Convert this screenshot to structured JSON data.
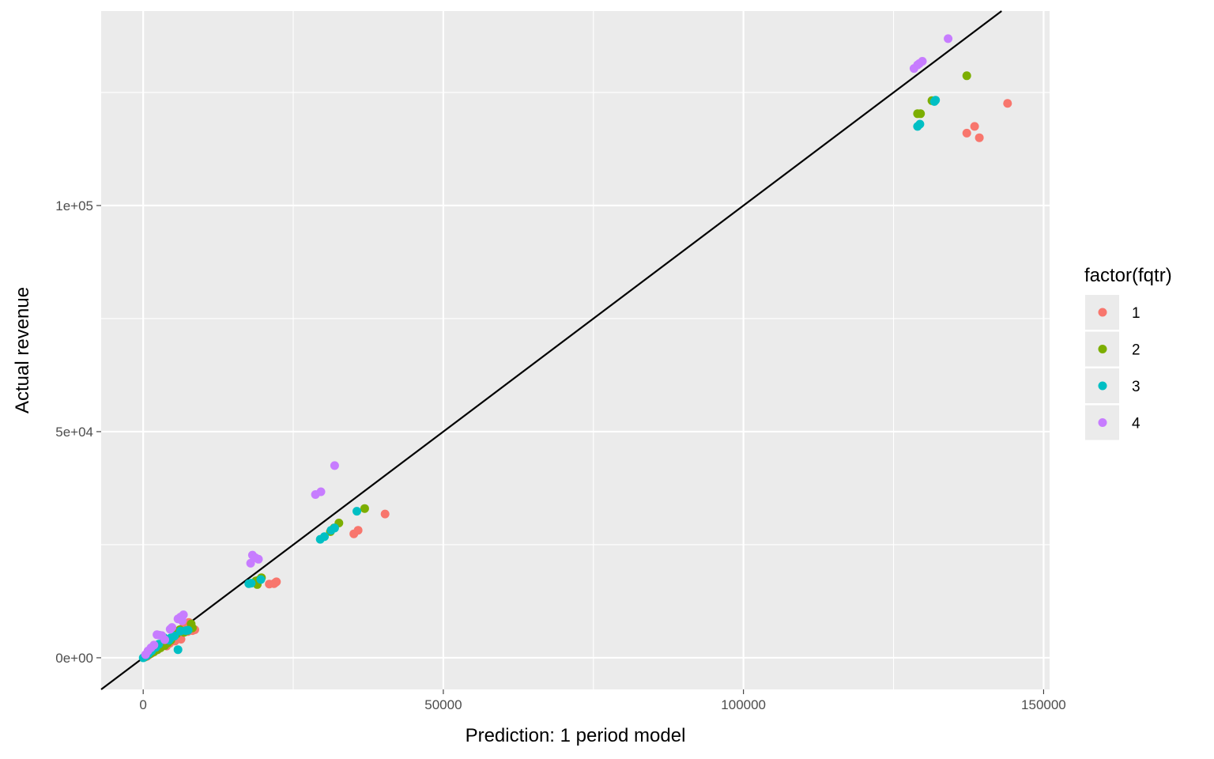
{
  "chart_data": {
    "type": "scatter",
    "title": "",
    "xlabel": "Prediction: 1 period model",
    "ylabel": "Actual revenue",
    "xlim": [
      -7000,
      151000
    ],
    "ylim": [
      -7000,
      143000
    ],
    "x_ticks": [
      {
        "value": 0,
        "label": "0"
      },
      {
        "value": 50000,
        "label": "50000"
      },
      {
        "value": 100000,
        "label": "100000"
      },
      {
        "value": 150000,
        "label": "150000"
      }
    ],
    "y_ticks": [
      {
        "value": 0,
        "label": "0e+00"
      },
      {
        "value": 50000,
        "label": "5e+04"
      },
      {
        "value": 100000,
        "label": "1e+05"
      }
    ],
    "grid": true,
    "reference_line": {
      "slope": 1,
      "intercept": 0,
      "color": "#000000"
    },
    "legend": {
      "title": "factor(fqtr)",
      "position": "right",
      "entries": [
        {
          "label": "1",
          "color": "#F8766D"
        },
        {
          "label": "2",
          "color": "#7CAE00"
        },
        {
          "label": "3",
          "color": "#00BFC4"
        },
        {
          "label": "4",
          "color": "#C77CFF"
        }
      ]
    },
    "series": [
      {
        "name": "1",
        "color": "#F8766D",
        "points": [
          [
            144000,
            122600
          ],
          [
            138500,
            117500
          ],
          [
            137200,
            116000
          ],
          [
            139300,
            115000
          ],
          [
            40300,
            31800
          ],
          [
            35800,
            28200
          ],
          [
            35100,
            27400
          ],
          [
            22200,
            16800
          ],
          [
            21800,
            16400
          ],
          [
            22000,
            16600
          ],
          [
            21000,
            16300
          ],
          [
            8600,
            6200
          ],
          [
            8200,
            6000
          ],
          [
            7900,
            6300
          ],
          [
            7600,
            7800
          ],
          [
            7400,
            5800
          ],
          [
            6800,
            7000
          ],
          [
            6300,
            4100
          ],
          [
            5900,
            4300
          ],
          [
            5300,
            3700
          ],
          [
            4400,
            3200
          ],
          [
            3900,
            2600
          ],
          [
            3300,
            2900
          ],
          [
            2700,
            2100
          ],
          [
            2200,
            1700
          ],
          [
            1900,
            2400
          ],
          [
            1400,
            1000
          ],
          [
            900,
            600
          ],
          [
            600,
            300
          ],
          [
            200,
            100
          ]
        ]
      },
      {
        "name": "2",
        "color": "#7CAE00",
        "points": [
          [
            137200,
            128700
          ],
          [
            131400,
            123200
          ],
          [
            129500,
            120300
          ],
          [
            129000,
            120300
          ],
          [
            36900,
            33000
          ],
          [
            32600,
            29800
          ],
          [
            31800,
            28700
          ],
          [
            31200,
            27900
          ],
          [
            19700,
            17700
          ],
          [
            19300,
            17200
          ],
          [
            19000,
            16200
          ],
          [
            18800,
            17000
          ],
          [
            8200,
            6600
          ],
          [
            8000,
            7500
          ],
          [
            7400,
            6000
          ],
          [
            6800,
            5600
          ],
          [
            6100,
            6200
          ],
          [
            5600,
            5300
          ],
          [
            4600,
            3900
          ],
          [
            4100,
            3300
          ],
          [
            3600,
            2700
          ],
          [
            2900,
            2200
          ],
          [
            2400,
            1800
          ],
          [
            1800,
            1300
          ],
          [
            1200,
            900
          ],
          [
            700,
            500
          ],
          [
            300,
            200
          ]
        ]
      },
      {
        "name": "3",
        "color": "#00BFC4",
        "points": [
          [
            132000,
            123300
          ],
          [
            131800,
            123000
          ],
          [
            129400,
            118000
          ],
          [
            129000,
            117500
          ],
          [
            35600,
            32400
          ],
          [
            31900,
            28700
          ],
          [
            31300,
            28200
          ],
          [
            30200,
            26800
          ],
          [
            29500,
            26200
          ],
          [
            19600,
            17300
          ],
          [
            18000,
            16500
          ],
          [
            17600,
            16400
          ],
          [
            7500,
            6100
          ],
          [
            7100,
            6000
          ],
          [
            6200,
            5900
          ],
          [
            5800,
            1800
          ],
          [
            5200,
            4800
          ],
          [
            4600,
            4400
          ],
          [
            4300,
            3900
          ],
          [
            3400,
            4500
          ],
          [
            2600,
            3000
          ],
          [
            2100,
            2300
          ],
          [
            1400,
            1500
          ],
          [
            900,
            900
          ],
          [
            500,
            400
          ],
          [
            200,
            200
          ],
          [
            0,
            0
          ]
        ]
      },
      {
        "name": "4",
        "color": "#C77CFF",
        "points": [
          [
            134100,
            136900
          ],
          [
            129800,
            131900
          ],
          [
            129300,
            131400
          ],
          [
            129000,
            131100
          ],
          [
            128400,
            130300
          ],
          [
            31900,
            42500
          ],
          [
            29600,
            36700
          ],
          [
            28700,
            36100
          ],
          [
            18200,
            22700
          ],
          [
            19200,
            21800
          ],
          [
            18700,
            22100
          ],
          [
            17900,
            20900
          ],
          [
            6700,
            9500
          ],
          [
            6200,
            9000
          ],
          [
            5800,
            8600
          ],
          [
            6500,
            8200
          ],
          [
            4800,
            6700
          ],
          [
            4500,
            6300
          ],
          [
            2700,
            5000
          ],
          [
            2300,
            5100
          ],
          [
            3100,
            4900
          ],
          [
            3600,
            4000
          ],
          [
            1800,
            2800
          ],
          [
            1300,
            2200
          ],
          [
            800,
            1500
          ],
          [
            400,
            700
          ]
        ]
      }
    ]
  }
}
